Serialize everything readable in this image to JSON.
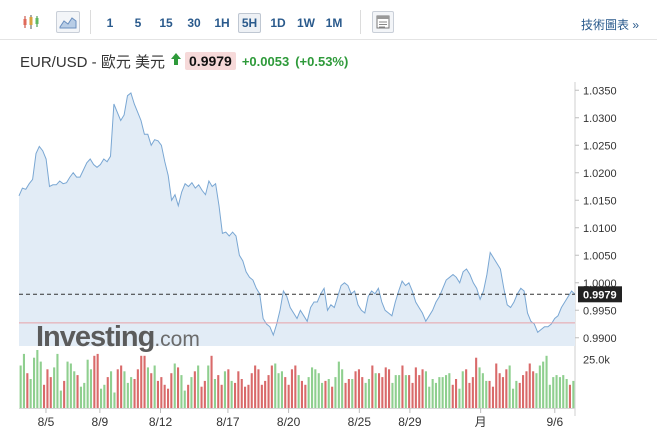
{
  "toolbar": {
    "icons": [
      "candlestick-chart-icon",
      "area-chart-icon",
      "chart-settings-icon"
    ],
    "timeframes": [
      "1",
      "5",
      "15",
      "30",
      "1H",
      "5H",
      "1D",
      "1W",
      "1M"
    ],
    "active_timeframe": "5H",
    "advanced_link": "技術圖表 »"
  },
  "header": {
    "pair": "EUR/USD - 歐元 美元",
    "price": "0.9979",
    "change": "+0.0053",
    "change_pct": "(+0.53%)",
    "direction_icon": "up-arrow-icon",
    "up_color": "#2e9a3a"
  },
  "watermark": {
    "brand": "Investing",
    "suffix": ".com"
  },
  "chart_data": {
    "type": "area",
    "symbol": "EUR/USD",
    "y_ticks": [
      "1.0350",
      "1.0300",
      "1.0250",
      "1.0200",
      "1.0150",
      "1.0100",
      "1.0050",
      "1.0000",
      "0.9950",
      "0.9900"
    ],
    "ylim": [
      0.9885,
      1.0365
    ],
    "last_price_label": "0.9979",
    "last_price": 0.9979,
    "reference_line": 0.9927,
    "x_tick_labels": [
      "8/5",
      "8/9",
      "8/12",
      "8/17",
      "8/20",
      "8/25",
      "8/29",
      "月",
      "9/6"
    ],
    "x_tick_positions": [
      8,
      24,
      42,
      62,
      80,
      101,
      116,
      137,
      159
    ],
    "x_range": [
      0,
      165
    ],
    "series": [
      {
        "values": [
          1.0158,
          1.0172,
          1.017,
          1.018,
          1.0188,
          1.0235,
          1.0248,
          1.024,
          1.0225,
          1.0175,
          1.0178,
          1.0178,
          1.0185,
          1.018,
          1.0182,
          1.0192,
          1.02,
          1.0192,
          1.0192,
          1.0205,
          1.0218,
          1.0225,
          1.0215,
          1.021,
          1.0215,
          1.0225,
          1.022,
          1.023,
          1.0325,
          1.031,
          1.0295,
          1.0305,
          1.034,
          1.0345,
          1.0325,
          1.031,
          1.0295,
          1.027,
          1.027,
          1.025,
          1.026,
          1.0258,
          1.025,
          1.022,
          1.0195,
          1.015,
          1.016,
          1.014,
          1.0165,
          1.018,
          1.0175,
          1.0182,
          1.0172,
          1.0178,
          1.0168,
          1.016,
          1.0185,
          1.0175,
          1.018,
          1.014,
          1.009,
          1.0092,
          1.0085,
          1.0092,
          1.0085,
          1.005,
          1.004,
          1.002,
          1.001,
          1.0005,
          0.999,
          0.998,
          0.9935,
          0.9925,
          0.992,
          0.9905,
          0.9925,
          0.995,
          0.9985,
          0.9975,
          0.9955,
          0.9945,
          0.9935,
          0.995,
          0.994,
          0.993,
          0.9955,
          0.9965,
          0.9965,
          0.998,
          0.999,
          0.995,
          0.996,
          0.9955,
          0.9975,
          0.9995,
          1.0,
          0.9995,
          0.998,
          0.9985,
          0.996,
          0.995,
          0.9945,
          0.9975,
          0.9985,
          0.998,
          0.999,
          0.9965,
          0.995,
          0.9945,
          0.994,
          0.9965,
          0.9985,
          1.0003,
          0.9995,
          1.0,
          0.9985,
          0.9965,
          0.9955,
          0.9945,
          0.993,
          0.994,
          0.995,
          0.9965,
          0.9975,
          0.999,
          1.0005,
          1.001,
          1.0015,
          1.001,
          1.0,
          1.002,
          1.0025,
          1.0015,
          1.0,
          0.999,
          0.997,
          0.9985,
          1.0015,
          1.0055,
          1.0045,
          1.0035,
          1.0025,
          0.999,
          0.996,
          0.9955,
          0.9965,
          0.998,
          0.999,
          0.9985,
          0.9945,
          0.993,
          0.9925,
          0.991,
          0.9915,
          0.992,
          0.992,
          0.9925,
          0.9935,
          0.994,
          0.9955,
          0.9965,
          0.9975,
          0.9985,
          0.9979
        ]
      }
    ],
    "volume": {
      "y_tick": "25.0k",
      "max": 30000,
      "values": [
        22000,
        28000,
        18000,
        15000,
        26000,
        30000,
        24000,
        12000,
        20000,
        16000,
        21000,
        28000,
        9000,
        14000,
        24000,
        23000,
        19000,
        17000,
        11000,
        13000,
        25000,
        20000,
        27000,
        28000,
        10000,
        12000,
        16000,
        19000,
        8000,
        20000,
        22000,
        19000,
        13000,
        16000,
        15000,
        20000,
        27000,
        27000,
        21000,
        18000,
        22000,
        14000,
        16000,
        12000,
        10000,
        18000,
        23000,
        21000,
        17000,
        9000,
        12000,
        16000,
        19000,
        22000,
        11000,
        14000,
        22000,
        27000,
        15000,
        17000,
        12000,
        19000,
        20000,
        14000,
        13000,
        19000,
        15000,
        11000,
        12000,
        18000,
        22000,
        20000,
        12000,
        14000,
        17000,
        22000,
        23000,
        18000,
        19000,
        16000,
        12000,
        20000,
        22000,
        17000,
        14000,
        12000,
        16000,
        21000,
        20000,
        18000,
        13000,
        14000,
        15000,
        11000,
        16000,
        24000,
        20000,
        13000,
        15000,
        15000,
        19000,
        20000,
        16000,
        13000,
        15000,
        22000,
        18000,
        18000,
        16000,
        21000,
        20000,
        13000,
        17000,
        17000,
        22000,
        17000,
        17000,
        13000,
        21000,
        17000,
        20000,
        19000,
        11000,
        15000,
        13000,
        16000,
        16000,
        17000,
        18000,
        12000,
        15000,
        10000,
        19000,
        20000,
        13000,
        16000,
        26000,
        21000,
        18000,
        14000,
        14000,
        11000,
        23000,
        18000,
        16000,
        20000,
        22000,
        10000,
        14000,
        13000,
        17000,
        19000,
        23000,
        19000,
        18000,
        22000,
        24000,
        27000,
        12000,
        16000,
        17000,
        16000,
        17000,
        15000,
        12000,
        14000
      ],
      "up_color": "#8fcf8f",
      "down_color": "#d96a6a"
    }
  }
}
